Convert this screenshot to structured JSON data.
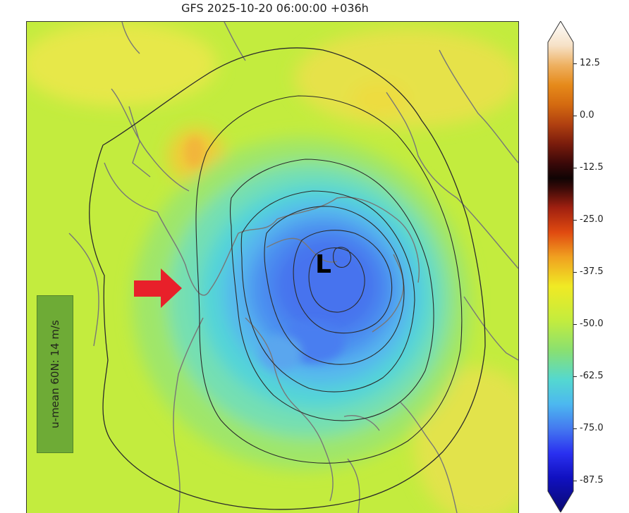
{
  "title": "GFS 2025-10-20 06:00:00 +036h",
  "annotation": {
    "text": "u-mean 60N: 14 m/s"
  },
  "low_marker": {
    "text": "L"
  },
  "colors": {
    "arrow": "#e8202a",
    "annotation_box": "#6aa836",
    "contours": "#222222",
    "coastlines": "#7a7a7a"
  },
  "colorbar": {
    "min": -90,
    "max": 17.5,
    "extend": "both",
    "ticks": [
      "12.5",
      "0.0",
      "-12.5",
      "-25.0",
      "-37.5",
      "-50.0",
      "-62.5",
      "-75.0",
      "-87.5"
    ],
    "tick_values": [
      12.5,
      0.0,
      -12.5,
      -25.0,
      -37.5,
      -50.0,
      -62.5,
      -75.0,
      -87.5
    ]
  }
}
